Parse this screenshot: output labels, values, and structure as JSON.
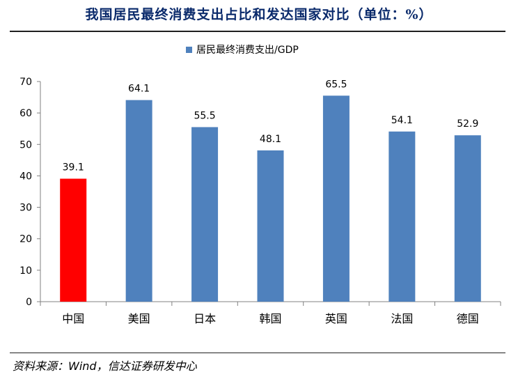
{
  "title": "我国居民最终消费支出占比和发达国家对比（单位：%）",
  "source": "资料来源：Wind，信达证券研发中心",
  "colors": {
    "bar": "#4f81bd",
    "highlight": "#ff0000",
    "title": "#0a2a6b"
  },
  "chart_data": {
    "type": "bar",
    "title": "",
    "xlabel": "",
    "ylabel": "",
    "categories": [
      "中国",
      "美国",
      "日本",
      "韩国",
      "英国",
      "法国",
      "德国"
    ],
    "series": [
      {
        "name": "居民最终消费支出/GDP",
        "values": [
          39.1,
          64.1,
          55.5,
          48.1,
          65.5,
          54.1,
          52.9
        ]
      }
    ],
    "highlight_category": "中国",
    "data_labels": [
      "39.1",
      "64.1",
      "55.5",
      "48.1",
      "65.5",
      "54.1",
      "52.9"
    ],
    "y_ticks": [
      0,
      10,
      20,
      30,
      40,
      50,
      60,
      70
    ],
    "ylim": [
      0,
      70
    ],
    "grid": false,
    "legend_position": "top-center"
  }
}
